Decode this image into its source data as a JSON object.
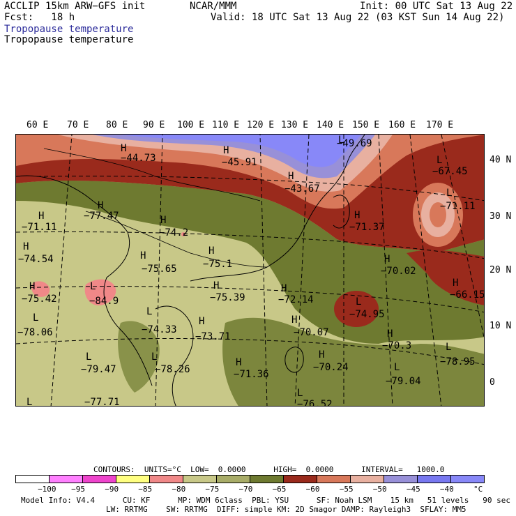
{
  "header": {
    "model": "ACCLIP 15km ARW−GFS init",
    "org": "NCAR/MMM",
    "init": "Init: 00 UTC Sat 13 Aug 22",
    "fcst": "Fcst:   18 h",
    "valid": "Valid: 18 UTC Sat 13 Aug 22 (03 KST Sun 14 Aug 22)",
    "field_title": "Tropopause temperature",
    "field_subtitle": "Tropopause temperature"
  },
  "map": {
    "lon_labels": [
      "60 E",
      "70 E",
      "80 E",
      "90 E",
      "100 E",
      "110 E",
      "120 E",
      "130 E",
      "140 E",
      "150 E",
      "160 E",
      "170 E"
    ],
    "lat_labels": [
      "40 N",
      "30 N",
      "20 N",
      "10 N",
      "0"
    ],
    "markers": [
      {
        "type": "H",
        "value": "−44.73"
      },
      {
        "type": "H",
        "value": "−45.91"
      },
      {
        "type": "H",
        "value": "−43.67"
      },
      {
        "type": "L",
        "value": "−49.69"
      },
      {
        "type": "L",
        "value": "−67.45"
      },
      {
        "type": "L",
        "value": "−71.11"
      },
      {
        "type": "H",
        "value": "−77.47"
      },
      {
        "type": "H",
        "value": "−71.11"
      },
      {
        "type": "H",
        "value": "−74.2"
      },
      {
        "type": "H",
        "value": "−71.37"
      },
      {
        "type": "H",
        "value": "−74.54"
      },
      {
        "type": "H",
        "value": "−75.65"
      },
      {
        "type": "H",
        "value": "−75.1"
      },
      {
        "type": "H",
        "value": "−70.02"
      },
      {
        "type": "H",
        "value": "−75.42"
      },
      {
        "type": "L",
        "value": "−84.9"
      },
      {
        "type": "H",
        "value": "−75.39"
      },
      {
        "type": "H",
        "value": "−72.14"
      },
      {
        "type": "L",
        "value": "−74.95"
      },
      {
        "type": "H",
        "value": "−66.15"
      },
      {
        "type": "L",
        "value": "−78.06"
      },
      {
        "type": "L",
        "value": "−74.33"
      },
      {
        "type": "H",
        "value": "−73.71"
      },
      {
        "type": "H",
        "value": "−70.07"
      },
      {
        "type": "H",
        "value": "−70.3"
      },
      {
        "type": "L",
        "value": "−79.47"
      },
      {
        "type": "L",
        "value": "−78.26"
      },
      {
        "type": "H",
        "value": "−71.36"
      },
      {
        "type": "H",
        "value": "−70.24"
      },
      {
        "type": "L",
        "value": "−78.95"
      },
      {
        "type": "L",
        "value": "−79.04"
      },
      {
        "type": "L",
        "value": "−77.71"
      },
      {
        "type": "L",
        "value": "−76.52"
      }
    ]
  },
  "contours": {
    "line": "CONTOURS:  UNITS=°C  LOW=  0.0000      HIGH=  0.0000      INTERVAL=   1000.0"
  },
  "colorbar": {
    "colors": [
      "#ffffff",
      "#ff80ff",
      "#ee44cc",
      "#ffff80",
      "#f08888",
      "#c8c888",
      "#a8ac68",
      "#6e7a30",
      "#9a2a1c",
      "#d8785a",
      "#e8b0a0",
      "#9890d8",
      "#7878f0",
      "#8888f8"
    ],
    "labels": [
      "−100",
      "−95",
      "−90",
      "−85",
      "−80",
      "−75",
      "−70",
      "−65",
      "−60",
      "−55",
      "−50",
      "−45",
      "−40",
      "°C"
    ]
  },
  "model_info": {
    "line1": "Model Info: V4.4      CU: KF      MP: WDM 6class  PBL: YSU      SF: Noah LSM    15 km   51 levels   90 sec",
    "line2": "LW: RRTMG    SW: RRTMG  DIFF: simple KM: 2D Smagor DAMP: Rayleigh3  SFLAY: MM5"
  }
}
